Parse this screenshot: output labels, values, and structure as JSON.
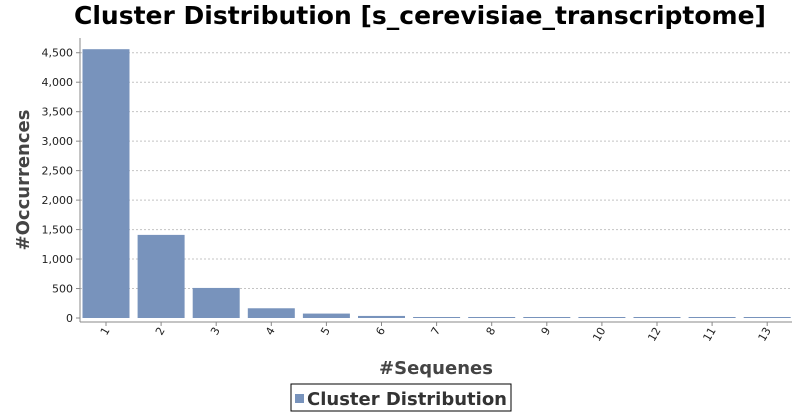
{
  "chart_data": {
    "type": "bar",
    "title": "Cluster Distribution [s_cerevisiae_transcriptome]",
    "xlabel": "#Sequenes",
    "ylabel": "#Occurrences",
    "categories": [
      "1",
      "2",
      "3",
      "4",
      "5",
      "6",
      "7",
      "8",
      "9",
      "10",
      "12",
      "11",
      "13"
    ],
    "series": [
      {
        "name": "Cluster Distribution",
        "values": [
          4560,
          1410,
          510,
          165,
          75,
          35,
          15,
          8,
          5,
          3,
          2,
          1,
          1
        ]
      }
    ],
    "ylim": [
      0,
      4750
    ],
    "yticks": [
      0,
      500,
      1000,
      1500,
      2000,
      2500,
      3000,
      3500,
      4000,
      4500
    ],
    "ytick_labels": [
      "0",
      "500",
      "1,000",
      "1,500",
      "2,000",
      "2,500",
      "3,000",
      "3,500",
      "4,000",
      "4,500"
    ],
    "grid": true,
    "legend_position": "bottom-center",
    "bar_color": "#7893bc"
  }
}
